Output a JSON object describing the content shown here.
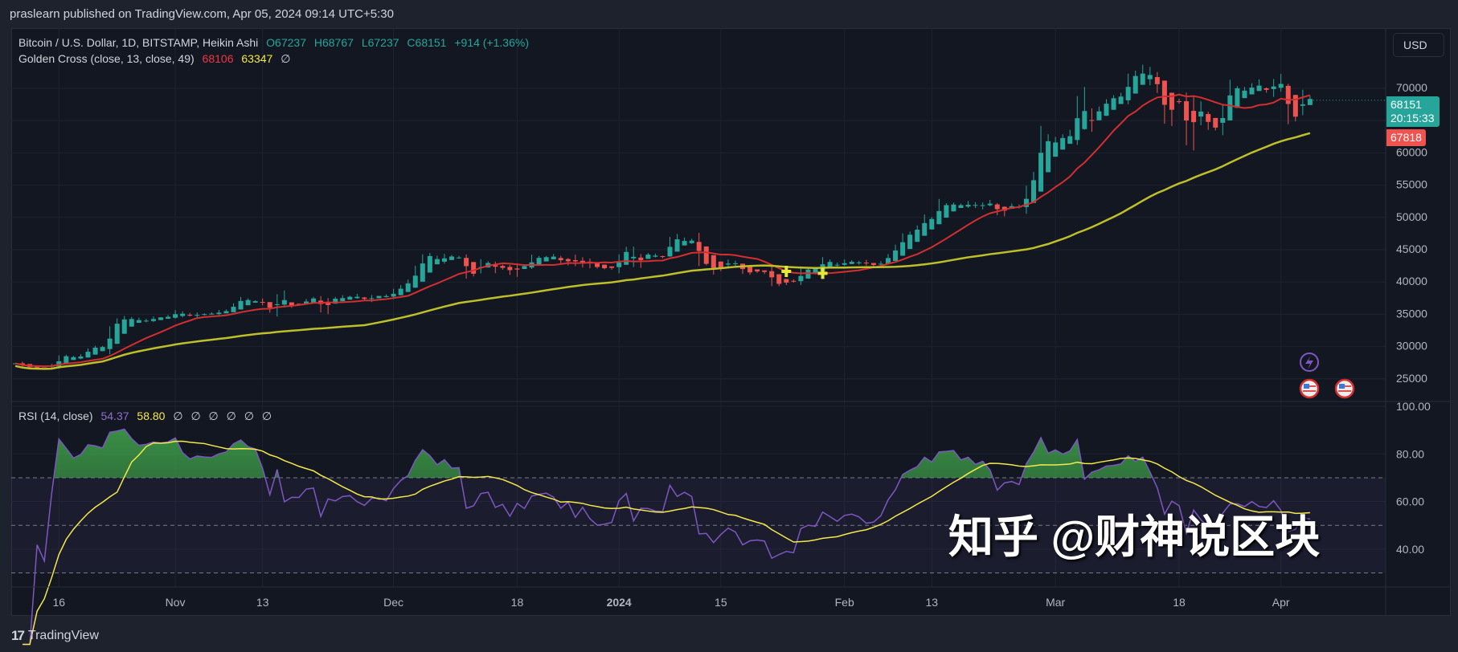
{
  "published": "praslearn published on TradingView.com, Apr 05, 2024 09:14 UTC+5:30",
  "symbol_legend": {
    "title": "Bitcoin / U.S. Dollar, 1D, BITSTAMP, Heikin Ashi",
    "open": "O67237",
    "high": "H68767",
    "low": "L67237",
    "close": "C68151",
    "change": "+914 (+1.36%)"
  },
  "golden_cross_legend": {
    "title": "Golden Cross (close, 13, close, 49)",
    "fast": "68106",
    "slow": "63347",
    "extra": "∅"
  },
  "rsi_legend": {
    "title": "RSI (14, close)",
    "rsi": "54.37",
    "ma": "58.80",
    "extras": [
      "∅",
      "∅",
      "∅",
      "∅",
      "∅",
      "∅"
    ]
  },
  "currency_button": "USD",
  "last_price_label": "68151",
  "countdown_label": "20:15:33",
  "prev_close_label": "67818",
  "footer_brand": "TradingView",
  "watermark": "知乎 @财神说区块",
  "colors": {
    "up": "#26a69a",
    "down": "#ef5350",
    "sma_fast": "#d32f2f",
    "sma_slow": "#bfbf2a",
    "rsi": "#7e57c2",
    "rsi_ma": "#f5e94a",
    "background": "#131722"
  },
  "chart_data": [
    {
      "type": "candlestick",
      "candle_style": "Heikin Ashi",
      "xlim": [
        "2023-10-10",
        "2024-04-05"
      ],
      "ylim": [
        22500,
        76000
      ],
      "y_ticks": [
        25000,
        30000,
        35000,
        40000,
        45000,
        50000,
        55000,
        60000,
        65000,
        70000
      ],
      "y_tick_labels": [
        "25000",
        "30000",
        "35000",
        "40000",
        "45000",
        "50000",
        "55000",
        "60000",
        "",
        "70000"
      ],
      "x_ticks": [
        {
          "label": "16",
          "date": "2023-10-16"
        },
        {
          "label": "Nov",
          "date": "2023-11-01"
        },
        {
          "label": "13",
          "date": "2023-11-13"
        },
        {
          "label": "Dec",
          "date": "2023-12-01"
        },
        {
          "label": "18",
          "date": "2023-12-18"
        },
        {
          "label": "2024",
          "date": "2024-01-01",
          "bold": true
        },
        {
          "label": "15",
          "date": "2024-01-15"
        },
        {
          "label": "Feb",
          "date": "2024-02-01"
        },
        {
          "label": "13",
          "date": "2024-02-13"
        },
        {
          "label": "Mar",
          "date": "2024-03-01"
        },
        {
          "label": "18",
          "date": "2024-03-18"
        },
        {
          "label": "Apr",
          "date": "2024-04-01"
        }
      ],
      "daily_close": [
        27400,
        26900,
        26750,
        26850,
        26850,
        27150,
        28500,
        28400,
        28300,
        28700,
        29700,
        29900,
        29990,
        33000,
        33900,
        34500,
        34150,
        33900,
        34090,
        34530,
        34500,
        34660,
        35420,
        34940,
        34730,
        35080,
        35050,
        35040,
        35420,
        35630,
        36700,
        37320,
        37130,
        37060,
        36490,
        35550,
        37880,
        36160,
        36590,
        36580,
        37370,
        37470,
        35800,
        37420,
        37290,
        37720,
        37800,
        37460,
        37250,
        37830,
        37850,
        37720,
        38690,
        39460,
        39970,
        41990,
        44080,
        43770,
        43290,
        44170,
        43720,
        43790,
        41240,
        41490,
        42870,
        43020,
        41940,
        42260,
        41360,
        42660,
        42270,
        43650,
        43860,
        43990,
        43740,
        43010,
        43590,
        42520,
        43440,
        42580,
        42070,
        42140,
        42280,
        44180,
        44950,
        42850,
        44180,
        44160,
        43970,
        43930,
        46970,
        46120,
        46660,
        46350,
        42780,
        42840,
        41730,
        42510,
        43150,
        42740,
        41260,
        41620,
        41690,
        41580,
        39570,
        39850,
        40080,
        39940,
        41820,
        42120,
        42030,
        43300,
        42950,
        42580,
        43080,
        43190,
        43000,
        42580,
        42660,
        43090,
        44330,
        45290,
        47130,
        47750,
        48290,
        49960,
        49700,
        51820,
        51940,
        52150,
        51660,
        52140,
        51780,
        52260,
        51840,
        50730,
        51570,
        51730,
        51570,
        54480,
        57050,
        62500,
        61200,
        62390,
        62040,
        63130,
        68330,
        63800,
        66100,
        66930,
        68300,
        68500,
        69020,
        72100,
        71480,
        73080,
        71390,
        69400,
        65300,
        68390,
        67610,
        61930,
        67850,
        65490,
        63780,
        64060,
        67230,
        69960,
        69990,
        69450,
        70780,
        69890,
        69700,
        71330,
        69700,
        65450,
        65980,
        68500,
        68151
      ],
      "overlays": [
        {
          "name": "Golden Cross fast SMA",
          "length": 13
        },
        {
          "name": "Golden Cross slow SMA",
          "length": 49
        }
      ],
      "cross_markers": [
        "2024-01-24",
        "2024-01-29"
      ],
      "last_price": 68151
    },
    {
      "type": "line",
      "indicator": "RSI",
      "length": 14,
      "ylim": [
        22,
        103
      ],
      "y_ticks": [
        40,
        60,
        80,
        100
      ],
      "y_tick_labels": [
        "40.00",
        "60.00",
        "80.00",
        "100.00"
      ],
      "bands": [
        30,
        50,
        70
      ],
      "last_rsi": 54.37,
      "last_ma": 58.8
    }
  ]
}
